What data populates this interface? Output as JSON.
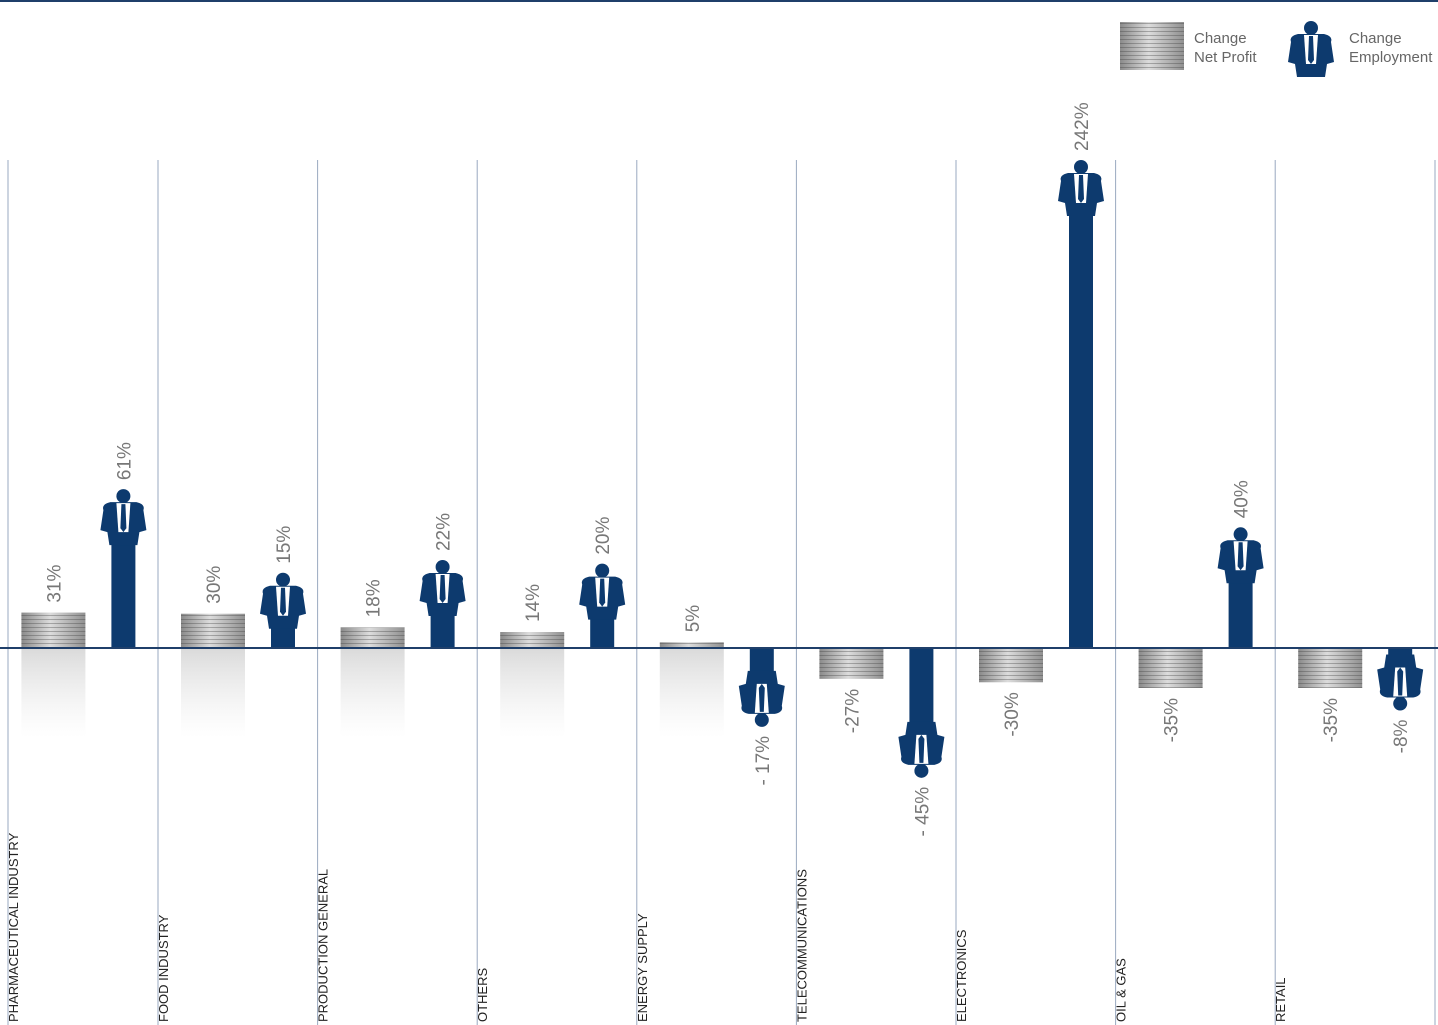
{
  "chart_data": {
    "type": "bar",
    "categories": [
      "PHARMACEUTICAL INDUSTRY",
      "FOOD INDUSTRY",
      "PRODUCTION GENERAL",
      "OTHERS",
      "ENERGY SUPPLY",
      "TELECOMMUNICATIONS",
      "ELECTRONICS",
      "OIL & GAS",
      "RETAIL"
    ],
    "series": [
      {
        "name": "Change Net Profit",
        "color": "#a9a9a9",
        "values": [
          31,
          30,
          18,
          14,
          5,
          -27,
          -30,
          -35,
          -35
        ],
        "value_labels": [
          "31%",
          "30%",
          "18%",
          "14%",
          "5%",
          "-27%",
          "-30%",
          "-35%",
          "-35%"
        ]
      },
      {
        "name": "Change Employment",
        "color": "#0d3a6e",
        "values": [
          61,
          15,
          22,
          20,
          -17,
          -45,
          242,
          40,
          -8
        ],
        "value_labels": [
          "61%",
          "15%",
          "22%",
          "20%",
          "- 17%",
          "- 45%",
          "242%",
          "40%",
          "-8%"
        ]
      }
    ]
  }
}
